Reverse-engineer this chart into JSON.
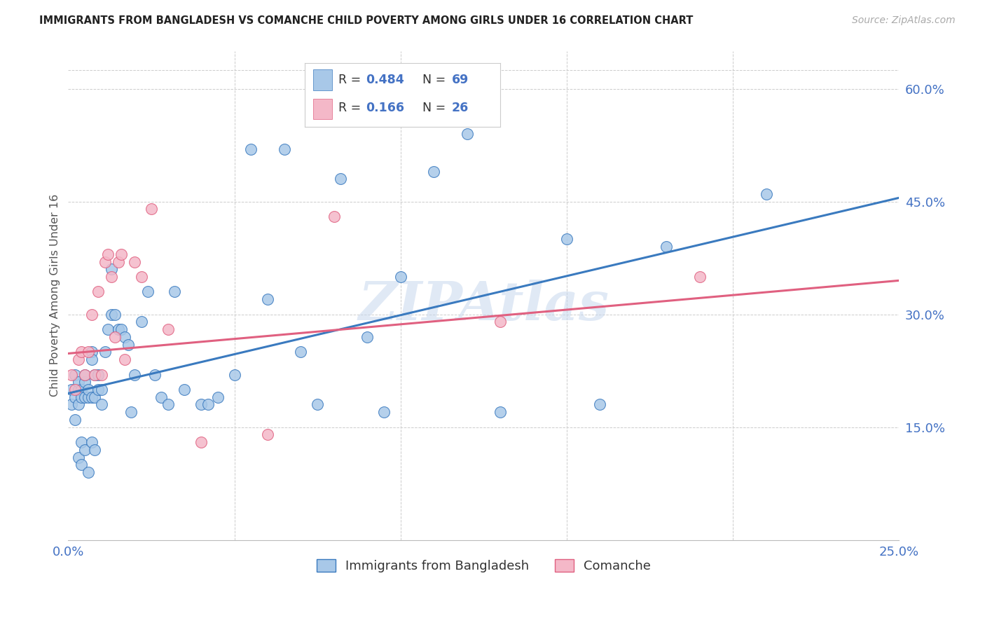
{
  "title": "IMMIGRANTS FROM BANGLADESH VS COMANCHE CHILD POVERTY AMONG GIRLS UNDER 16 CORRELATION CHART",
  "source": "Source: ZipAtlas.com",
  "ylabel": "Child Poverty Among Girls Under 16",
  "legend_label1": "Immigrants from Bangladesh",
  "legend_label2": "Comanche",
  "r1": 0.484,
  "n1": 69,
  "r2": 0.166,
  "n2": 26,
  "xlim": [
    0.0,
    0.25
  ],
  "ylim": [
    0.0,
    0.65
  ],
  "xticks": [
    0.0,
    0.05,
    0.1,
    0.15,
    0.2,
    0.25
  ],
  "xtick_labels": [
    "0.0%",
    "",
    "",
    "",
    "",
    "25.0%"
  ],
  "yticks": [
    0.0,
    0.15,
    0.3,
    0.45,
    0.6
  ],
  "ytick_labels": [
    "",
    "15.0%",
    "30.0%",
    "45.0%",
    "60.0%"
  ],
  "color_blue": "#a8c8e8",
  "color_pink": "#f4b8c8",
  "line_blue": "#3a7abf",
  "line_pink": "#e06080",
  "watermark": "ZIPAtlas",
  "title_color": "#222222",
  "axis_label_color": "#4472c4",
  "background_color": "#ffffff",
  "blue_x": [
    0.001,
    0.001,
    0.002,
    0.002,
    0.002,
    0.003,
    0.003,
    0.003,
    0.003,
    0.004,
    0.004,
    0.004,
    0.004,
    0.005,
    0.005,
    0.005,
    0.005,
    0.006,
    0.006,
    0.006,
    0.007,
    0.007,
    0.007,
    0.007,
    0.008,
    0.008,
    0.008,
    0.009,
    0.009,
    0.01,
    0.01,
    0.011,
    0.012,
    0.013,
    0.013,
    0.014,
    0.015,
    0.016,
    0.017,
    0.018,
    0.019,
    0.02,
    0.022,
    0.024,
    0.026,
    0.028,
    0.03,
    0.032,
    0.035,
    0.04,
    0.042,
    0.045,
    0.05,
    0.055,
    0.06,
    0.065,
    0.07,
    0.075,
    0.082,
    0.09,
    0.095,
    0.1,
    0.11,
    0.12,
    0.13,
    0.15,
    0.16,
    0.18,
    0.21
  ],
  "blue_y": [
    0.2,
    0.18,
    0.22,
    0.19,
    0.16,
    0.2,
    0.21,
    0.18,
    0.11,
    0.2,
    0.19,
    0.13,
    0.1,
    0.21,
    0.19,
    0.22,
    0.12,
    0.19,
    0.2,
    0.09,
    0.25,
    0.24,
    0.19,
    0.13,
    0.19,
    0.12,
    0.22,
    0.22,
    0.2,
    0.18,
    0.2,
    0.25,
    0.28,
    0.36,
    0.3,
    0.3,
    0.28,
    0.28,
    0.27,
    0.26,
    0.17,
    0.22,
    0.29,
    0.33,
    0.22,
    0.19,
    0.18,
    0.33,
    0.2,
    0.18,
    0.18,
    0.19,
    0.22,
    0.52,
    0.32,
    0.52,
    0.25,
    0.18,
    0.48,
    0.27,
    0.17,
    0.35,
    0.49,
    0.54,
    0.17,
    0.4,
    0.18,
    0.39,
    0.46
  ],
  "pink_x": [
    0.001,
    0.002,
    0.003,
    0.004,
    0.005,
    0.006,
    0.007,
    0.008,
    0.009,
    0.01,
    0.011,
    0.012,
    0.013,
    0.014,
    0.015,
    0.016,
    0.017,
    0.02,
    0.022,
    0.025,
    0.03,
    0.04,
    0.06,
    0.08,
    0.13,
    0.19
  ],
  "pink_y": [
    0.22,
    0.2,
    0.24,
    0.25,
    0.22,
    0.25,
    0.3,
    0.22,
    0.33,
    0.22,
    0.37,
    0.38,
    0.35,
    0.27,
    0.37,
    0.38,
    0.24,
    0.37,
    0.35,
    0.44,
    0.28,
    0.13,
    0.14,
    0.43,
    0.29,
    0.35
  ],
  "blue_regline_x": [
    0.0,
    0.25
  ],
  "blue_regline_y": [
    0.195,
    0.455
  ],
  "pink_regline_x": [
    0.0,
    0.25
  ],
  "pink_regline_y": [
    0.248,
    0.345
  ]
}
